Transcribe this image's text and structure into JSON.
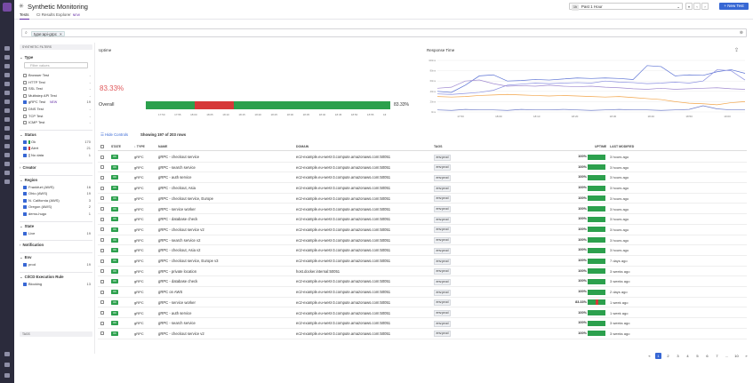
{
  "header": {
    "title": "Synthetic Monitoring",
    "tabs": [
      {
        "label": "Tests",
        "active": true
      },
      {
        "label": "CI Results Explorer",
        "badge": "NEW",
        "active": false
      }
    ],
    "time_pill": "1h",
    "time_range": "Past 1 Hour",
    "new_test_label": "+ New Test"
  },
  "search": {
    "query_chip": "type:api-grpc"
  },
  "facets": {
    "header": "SYNTHETIC FILTERS",
    "filter_placeholder": "Filter values",
    "sections": [
      {
        "title": "Type",
        "items": [
          {
            "label": "Browser Test",
            "count": "-",
            "checked": false
          },
          {
            "label": "HTTP Test",
            "count": "-",
            "checked": false
          },
          {
            "label": "SSL Test",
            "count": "-",
            "checked": false
          },
          {
            "label": "Multistep API Test",
            "count": "-",
            "checked": false
          },
          {
            "label": "gRPC Test",
            "badge": "NEW",
            "count": "19",
            "checked": true
          },
          {
            "label": "DNS Test",
            "count": "-",
            "checked": false
          },
          {
            "label": "TCP Test",
            "count": "-",
            "checked": false
          },
          {
            "label": "ICMP Test",
            "count": "-",
            "checked": false
          }
        ]
      },
      {
        "title": "Status",
        "items": [
          {
            "label": "Ok",
            "count": "170",
            "checked": true,
            "color": "#2ca04d"
          },
          {
            "label": "Alert",
            "count": "21",
            "checked": true,
            "color": "#d63838"
          },
          {
            "label": "No data",
            "count": "1",
            "checked": true,
            "color": "#bbbbbb"
          }
        ]
      },
      {
        "title": "Creator",
        "items": []
      },
      {
        "title": "Region",
        "items": [
          {
            "label": "Frankfurt (AWS)",
            "count": "16",
            "checked": true
          },
          {
            "label": "Ohio (AWS)",
            "count": "19",
            "checked": true
          },
          {
            "label": "N. California (AWS)",
            "count": "3",
            "checked": true
          },
          {
            "label": "Oregon (AWS)",
            "count": "2",
            "checked": true
          },
          {
            "label": "demo-hugo",
            "count": "1",
            "checked": true
          }
        ]
      },
      {
        "title": "State",
        "items": [
          {
            "label": "Live",
            "count": "19",
            "checked": true
          }
        ]
      },
      {
        "title": "Notification",
        "items": []
      },
      {
        "title": "Env",
        "items": [
          {
            "label": "prod",
            "count": "19",
            "checked": true
          }
        ]
      },
      {
        "title": "CI/CD Execution Rule",
        "items": [
          {
            "label": "Blocking",
            "count": "13",
            "checked": true
          }
        ]
      }
    ],
    "tags_header": "TAGS"
  },
  "uptime_panel": {
    "title": "Uptime",
    "value": "83.33%",
    "overall_label": "Overall",
    "overall_pct": "83.33%",
    "segments": [
      {
        "status": "ok",
        "from": 0,
        "to": 0.2
      },
      {
        "status": "alert",
        "from": 0.2,
        "to": 0.36
      },
      {
        "status": "ok",
        "from": 0.36,
        "to": 1
      }
    ],
    "ticks": [
      "17:50",
      "17:55",
      "18:00",
      "18:05",
      "18:10",
      "18:15",
      "18:20",
      "18:25",
      "18:30",
      "18:35",
      "18:40",
      "18:45",
      "18:50",
      "18:55",
      "1€"
    ],
    "colors": {
      "ok": "#2ca04d",
      "alert": "#d63838"
    }
  },
  "response_panel": {
    "title": "Response Time",
    "y_ticks": [
      "100ms",
      "80ms",
      "60ms",
      "40ms",
      "20ms",
      "0ms"
    ],
    "x_ticks": [
      "17:50",
      "18:00",
      "18:10",
      "18:20",
      "18:30",
      "18:40",
      "18:50",
      "19:00"
    ]
  },
  "chart_data": {
    "type": "line",
    "title": "Response Time",
    "x": [
      "17:45",
      "17:50",
      "17:55",
      "18:00",
      "18:05",
      "18:10",
      "18:15",
      "18:20",
      "18:25",
      "18:30",
      "18:35",
      "18:40",
      "18:45",
      "18:50",
      "18:55",
      "19:00",
      "19:05",
      "19:10",
      "19:15",
      "19:20",
      "19:25",
      "19:30",
      "19:35"
    ],
    "y_range": [
      0,
      100
    ],
    "series": [
      {
        "color": "#5b72d4",
        "values": [
          40,
          38,
          52,
          70,
          72,
          60,
          61,
          63,
          62,
          64,
          66,
          65,
          66,
          65,
          63,
          90,
          88,
          70,
          72,
          71,
          78,
          82,
          75
        ]
      },
      {
        "color": "#8a8fe0",
        "values": [
          35,
          34,
          36,
          38,
          42,
          52,
          54,
          56,
          55,
          56,
          57,
          56,
          60,
          58,
          57,
          55,
          56,
          58,
          56,
          60,
          82,
          80,
          62
        ]
      },
      {
        "color": "#f2a54a",
        "values": [
          30,
          29,
          30,
          32,
          33,
          34,
          33,
          32,
          31,
          32,
          31,
          30,
          29,
          30,
          28,
          26,
          24,
          20,
          17,
          16,
          14,
          18,
          20
        ]
      },
      {
        "color": "#a08ad0",
        "values": [
          46,
          48,
          60,
          62,
          55,
          50,
          51,
          50,
          52,
          50,
          49,
          50,
          48,
          47,
          45,
          44,
          46,
          44,
          45,
          46,
          47,
          45,
          44
        ]
      },
      {
        "color": "#6e7cc8",
        "values": [
          4,
          3,
          5,
          4,
          4,
          3,
          5,
          4,
          4,
          5,
          4,
          3,
          4,
          5,
          4,
          4,
          3,
          4,
          5,
          12,
          6,
          4,
          4
        ]
      }
    ],
    "grid": true
  },
  "table": {
    "hide_controls": "Hide Controls",
    "showing": "Showing 197 of 203 rows",
    "headers": {
      "status": "STATE",
      "type": "↓ TYPE",
      "name": "NAME",
      "domain": "DOMAIN",
      "tags": "TAGS",
      "uptime": "UPTIME",
      "last_modified": "LAST MODIFIED"
    },
    "rows": [
      {
        "status": "OK",
        "type": "gRPC",
        "name": "gRPC - checkout service",
        "domain": "ec2-example.eu-west-3.compute.amazonaws.com:50051",
        "tag": "env:prod",
        "uptime": "100%",
        "uptime_value": 1,
        "modified": "3 hours ago"
      },
      {
        "status": "OK",
        "type": "gRPC",
        "name": "gRPC - search service",
        "domain": "ec2-example.eu-west-3.compute.amazonaws.com:50051",
        "tag": "env:prod",
        "uptime": "100%",
        "uptime_value": 1,
        "modified": "3 hours ago"
      },
      {
        "status": "OK",
        "type": "gRPC",
        "name": "gRPC - auth service",
        "domain": "ec2-example.eu-west-3.compute.amazonaws.com:50051",
        "tag": "env:prod",
        "uptime": "100%",
        "uptime_value": 1,
        "modified": "3 hours ago"
      },
      {
        "status": "OK",
        "type": "gRPC",
        "name": "gRPC - checkout, Asia",
        "domain": "ec2-example.eu-west-3.compute.amazonaws.com:50051",
        "tag": "env:prod",
        "uptime": "100%",
        "uptime_value": 1,
        "modified": "3 hours ago"
      },
      {
        "status": "OK",
        "type": "gRPC",
        "name": "gRPC - checkout service, Europe",
        "domain": "ec2-example.eu-west-3.compute.amazonaws.com:50051",
        "tag": "env:prod",
        "uptime": "100%",
        "uptime_value": 1,
        "modified": "3 hours ago"
      },
      {
        "status": "OK",
        "type": "gRPC",
        "name": "gRPC - service worker",
        "domain": "ec2-example.eu-west-3.compute.amazonaws.com:50051",
        "tag": "env:prod",
        "uptime": "100%",
        "uptime_value": 1,
        "modified": "3 hours ago"
      },
      {
        "status": "OK",
        "type": "gRPC",
        "name": "gRPC - database check",
        "domain": "ec2-example.eu-west-3.compute.amazonaws.com:50051",
        "tag": "env:prod",
        "uptime": "100%",
        "uptime_value": 1,
        "modified": "3 hours ago"
      },
      {
        "status": "OK",
        "type": "gRPC",
        "name": "gRPC - checkout service v2",
        "domain": "ec2-example.eu-west-3.compute.amazonaws.com:50051",
        "tag": "env:prod",
        "uptime": "100%",
        "uptime_value": 1,
        "modified": "3 hours ago"
      },
      {
        "status": "OK",
        "type": "gRPC",
        "name": "gRPC - search service v2",
        "domain": "ec2-example.eu-west-3.compute.amazonaws.com:50051",
        "tag": "env:prod",
        "uptime": "100%",
        "uptime_value": 1,
        "modified": "3 hours ago"
      },
      {
        "status": "OK",
        "type": "gRPC",
        "name": "gRPC - checkout, Asia v2",
        "domain": "ec2-example.eu-west-3.compute.amazonaws.com:50051",
        "tag": "env:prod",
        "uptime": "100%",
        "uptime_value": 1,
        "modified": "3 hours ago"
      },
      {
        "status": "OK",
        "type": "gRPC",
        "name": "gRPC - checkout service, Europe v3",
        "domain": "ec2-example.eu-west-3.compute.amazonaws.com:50051",
        "tag": "env:prod",
        "uptime": "100%",
        "uptime_value": 1,
        "modified": "7 days ago"
      },
      {
        "status": "OK",
        "type": "gRPC",
        "name": "gRPC - private location",
        "domain": "host.docker.internal:50051",
        "tag": "env:prod",
        "uptime": "100%",
        "uptime_value": 1,
        "modified": "3 weeks ago"
      },
      {
        "status": "OK",
        "type": "gRPC",
        "name": "gRPC - database check",
        "domain": "ec2-example.eu-west-3.compute.amazonaws.com:50051",
        "tag": "env:prod",
        "uptime": "100%",
        "uptime_value": 1,
        "modified": "3 weeks ago"
      },
      {
        "status": "OK",
        "type": "gRPC",
        "name": "gRPC on AWS",
        "domain": "ec2-example.eu-west-3.compute.amazonaws.com:50051",
        "tag": "env:prod",
        "uptime": "100%",
        "uptime_value": 1,
        "modified": "2 days ago"
      },
      {
        "status": "OK",
        "type": "gRPC",
        "name": "gRPC - service worker",
        "domain": "ec2-example.eu-west-3.compute.amazonaws.com:50051",
        "tag": "env:prod",
        "uptime": "83.33%",
        "uptime_value": 0.8333,
        "modified": "1 week ago"
      },
      {
        "status": "OK",
        "type": "gRPC",
        "name": "gRPC - auth service",
        "domain": "ec2-example.eu-west-3.compute.amazonaws.com:50051",
        "tag": "env:prod",
        "uptime": "100%",
        "uptime_value": 1,
        "modified": "1 week ago"
      },
      {
        "status": "OK",
        "type": "gRPC",
        "name": "gRPC - search service",
        "domain": "ec2-example.eu-west-3.compute.amazonaws.com:50051",
        "tag": "env:prod",
        "uptime": "100%",
        "uptime_value": 1,
        "modified": "3 weeks ago"
      },
      {
        "status": "OK",
        "type": "gRPC",
        "name": "gRPC - checkout service v2",
        "domain": "ec2-example.eu-west-3.compute.amazonaws.com:50051",
        "tag": "env:prod",
        "uptime": "100%",
        "uptime_value": 1,
        "modified": "3 weeks ago"
      }
    ]
  },
  "pagination": {
    "prev": "«",
    "pages": [
      "1",
      "2",
      "3",
      "4",
      "5",
      "6",
      "7",
      "...",
      "10"
    ],
    "current": "1",
    "next": "»"
  },
  "colors": {
    "accent": "#632ca6",
    "primary": "#3767d4",
    "ok": "#2ca04d",
    "alert": "#d63838"
  }
}
